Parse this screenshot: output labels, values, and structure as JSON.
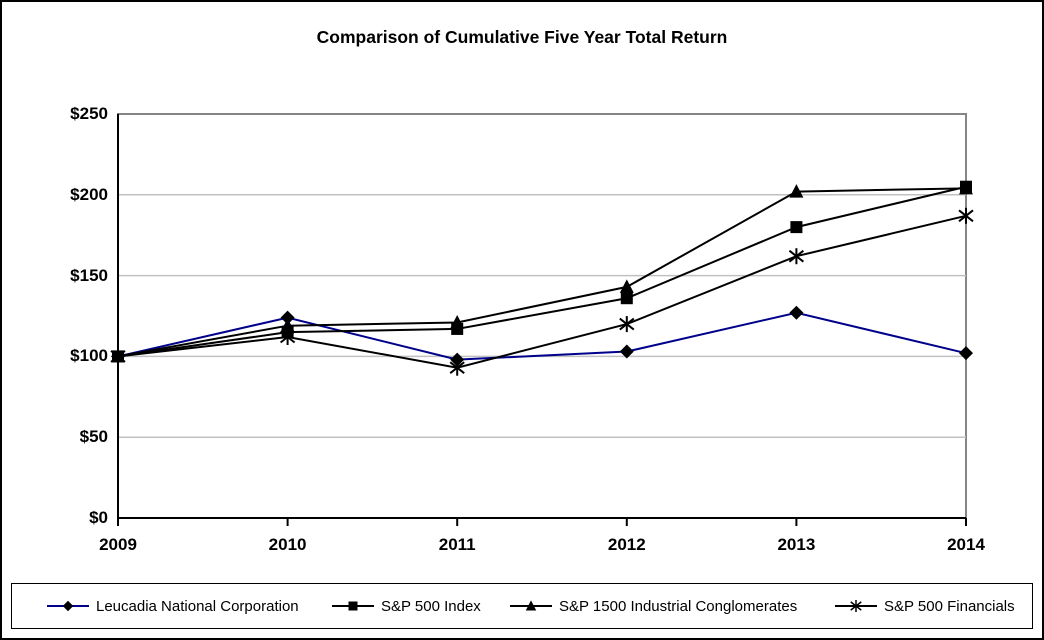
{
  "chart_data": {
    "type": "line",
    "title": "Comparison of Cumulative Five Year Total Return",
    "x": [
      2009,
      2010,
      2011,
      2012,
      2013,
      2014
    ],
    "x_tick_labels": [
      "2009",
      "2010",
      "2011",
      "2012",
      "2013",
      "2014"
    ],
    "y_tick_labels": [
      "$0",
      "$50",
      "$100",
      "$150",
      "$200",
      "$250"
    ],
    "ylim": [
      0,
      250
    ],
    "y_tick_step": 50,
    "grid": true,
    "legend_position": "bottom",
    "series": [
      {
        "name": "Leucadia National Corporation",
        "marker": "diamond",
        "color": "#00008B",
        "marker_color": "#000000",
        "values": [
          100,
          124,
          98,
          103,
          127,
          102
        ]
      },
      {
        "name": "S&P 500 Index",
        "marker": "square",
        "color": "#000000",
        "marker_color": "#000000",
        "values": [
          100,
          115,
          117,
          136,
          180,
          205
        ]
      },
      {
        "name": "S&P 1500 Industrial Conglomerates",
        "marker": "triangle",
        "color": "#000000",
        "marker_color": "#000000",
        "values": [
          100,
          119,
          121,
          143,
          202,
          204
        ]
      },
      {
        "name": "S&P 500 Financials",
        "marker": "asterisk",
        "color": "#000000",
        "marker_color": "#000000",
        "values": [
          100,
          112,
          93,
          120,
          162,
          187
        ]
      }
    ],
    "colors": {
      "gridline": "#c0c0c0",
      "plot_border": "#858585",
      "axis": "#000000",
      "background": "#ffffff"
    }
  }
}
